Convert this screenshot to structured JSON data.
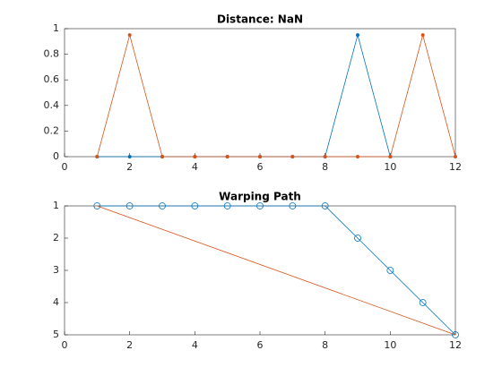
{
  "chart_data": [
    {
      "type": "line",
      "title": "Distance: NaN",
      "xlim": [
        0,
        12
      ],
      "xticks": [
        0,
        2,
        4,
        6,
        8,
        10,
        12
      ],
      "ylim": [
        0,
        1
      ],
      "yticks": [
        0,
        0.2,
        0.4,
        0.6,
        0.8,
        1
      ],
      "series": [
        {
          "color": "#0072bd",
          "marker": ".",
          "x": [
            1,
            2,
            3,
            4,
            5,
            6,
            7,
            8,
            9,
            10
          ],
          "values": [
            0,
            0,
            0,
            0,
            0,
            0,
            0,
            0,
            0.95,
            0
          ]
        },
        {
          "color": "#d95319",
          "marker": ".",
          "x": [
            1,
            2,
            3,
            4,
            5,
            6,
            7,
            8,
            9,
            10,
            11,
            12
          ],
          "values": [
            0,
            0.95,
            0,
            0,
            0,
            0,
            0,
            0,
            0,
            0,
            0.95,
            0
          ]
        }
      ]
    },
    {
      "type": "line",
      "title": "Warping Path",
      "y_reversed": true,
      "xlim": [
        0,
        12
      ],
      "xticks": [
        0,
        2,
        4,
        6,
        8,
        10,
        12
      ],
      "ylim": [
        1,
        5
      ],
      "yticks": [
        1,
        2,
        3,
        4,
        5
      ],
      "series": [
        {
          "color": "#0072bd",
          "marker": "o",
          "x": [
            1,
            2,
            3,
            4,
            5,
            6,
            7,
            8,
            9,
            10,
            11,
            12
          ],
          "values": [
            1,
            1,
            1,
            1,
            1,
            1,
            1,
            1,
            2,
            3,
            4,
            5
          ]
        },
        {
          "color": "#d95319",
          "x": [
            1,
            12
          ],
          "values": [
            1,
            5
          ]
        }
      ]
    }
  ]
}
